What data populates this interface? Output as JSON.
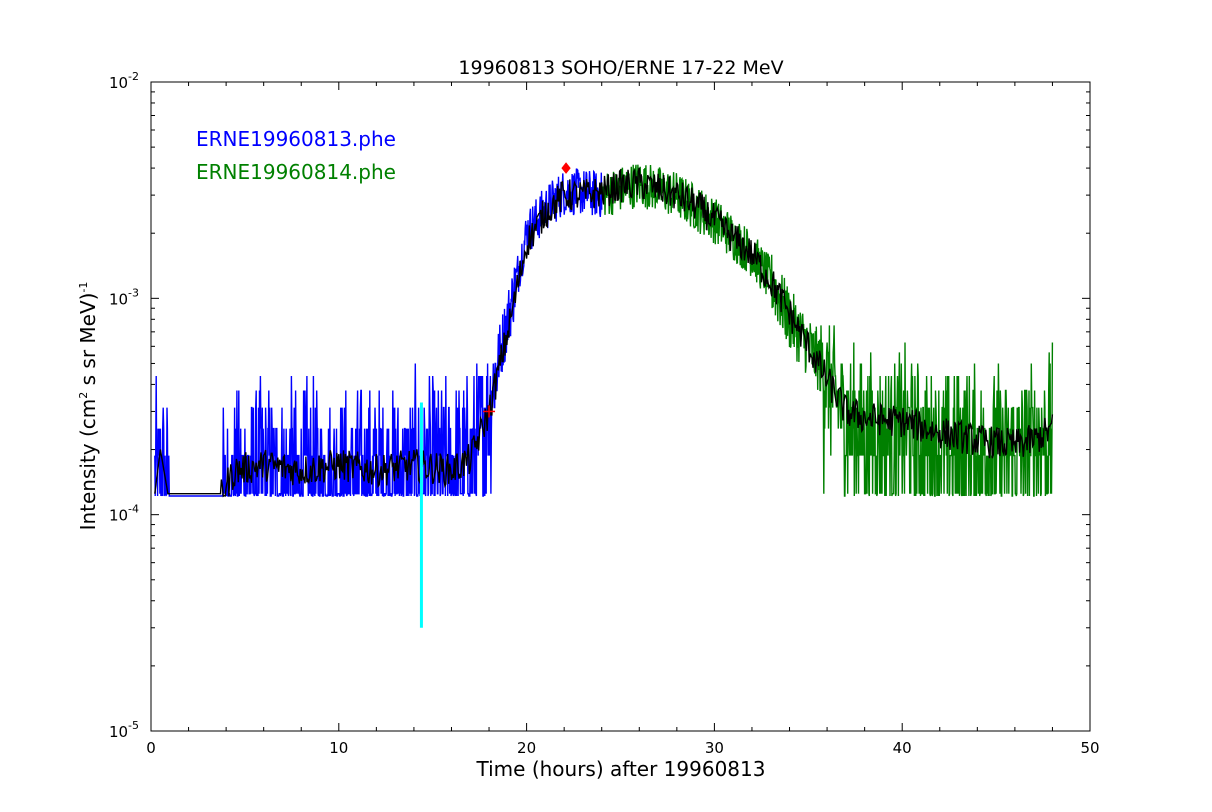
{
  "chart_data": {
    "type": "line",
    "title": "19960813 SOHO/ERNE 17-22 MeV",
    "xlabel": "Time (hours) after 19960813",
    "ylabel_prefix": "Intensity (cm",
    "ylabel_sup1": "2",
    "ylabel_mid": "  s sr MeV)",
    "ylabel_sup2": "-1",
    "xlim": [
      0,
      50
    ],
    "ylim": [
      1e-05,
      0.01
    ],
    "yscale": "log",
    "x_ticks": [
      "0",
      "10",
      "20",
      "30",
      "40",
      "50"
    ],
    "y_ticks": [
      {
        "base": "10",
        "exp": "-5"
      },
      {
        "base": "10",
        "exp": "-4"
      },
      {
        "base": "10",
        "exp": "-3"
      },
      {
        "base": "10",
        "exp": "-2"
      }
    ],
    "legend": [
      {
        "name": "ERNE19960813.phe",
        "color": "#0000ff"
      },
      {
        "name": "ERNE19960814.phe",
        "color": "#008000"
      }
    ],
    "legend_placement": "top-left",
    "grid": false,
    "series": [
      {
        "name": "ERNE19960813.phe",
        "color": "#0000ff",
        "x_range": [
          0.2,
          24.0
        ],
        "profile": [
          [
            0.2,
            0.00013
          ],
          [
            0.6,
            0.00018
          ],
          [
            1.0,
            0.000125
          ],
          [
            3.7,
            0.000125
          ],
          [
            5.0,
            0.00017
          ],
          [
            10.0,
            0.00016
          ],
          [
            15.0,
            0.00017
          ],
          [
            17.0,
            0.00019
          ],
          [
            18.0,
            0.00035
          ],
          [
            19.0,
            0.0008
          ],
          [
            20.0,
            0.002
          ],
          [
            21.0,
            0.0026
          ],
          [
            22.0,
            0.0031
          ],
          [
            23.0,
            0.0031
          ],
          [
            24.0,
            0.003
          ]
        ],
        "noise_floor": 0.000122,
        "noise_quantum": 6.25e-05
      },
      {
        "name": "ERNE19960814.phe",
        "color": "#008000",
        "x_range": [
          24.0,
          48.0
        ],
        "profile": [
          [
            24.0,
            0.003
          ],
          [
            26.0,
            0.0034
          ],
          [
            28.0,
            0.003
          ],
          [
            30.0,
            0.0023
          ],
          [
            32.0,
            0.0016
          ],
          [
            33.0,
            0.0012
          ],
          [
            34.0,
            0.0008
          ],
          [
            35.0,
            0.0006
          ],
          [
            36.0,
            0.00045
          ],
          [
            37.0,
            0.0003
          ],
          [
            38.0,
            0.00026
          ],
          [
            40.0,
            0.00025
          ],
          [
            42.0,
            0.00022
          ],
          [
            44.0,
            0.00022
          ],
          [
            46.0,
            0.00021
          ],
          [
            47.0,
            0.00023
          ],
          [
            48.0,
            0.00025
          ]
        ],
        "noise_floor": 0.000122,
        "noise_quantum": 6.25e-05
      }
    ],
    "smoothed": {
      "color": "#000000",
      "profile": [
        [
          0.2,
          0.000125
        ],
        [
          0.5,
          0.0002
        ],
        [
          0.9,
          0.000125
        ],
        [
          3.7,
          0.000125
        ],
        [
          4.5,
          0.00016
        ],
        [
          6.0,
          0.00017
        ],
        [
          8.0,
          0.00016
        ],
        [
          10.0,
          0.00017
        ],
        [
          12.0,
          0.00016
        ],
        [
          14.0,
          0.00017
        ],
        [
          16.0,
          0.00016
        ],
        [
          17.0,
          0.00018
        ],
        [
          18.0,
          0.0003
        ],
        [
          19.0,
          0.0007
        ],
        [
          20.0,
          0.0018
        ],
        [
          21.0,
          0.0025
        ],
        [
          22.0,
          0.003
        ],
        [
          23.0,
          0.003
        ],
        [
          24.0,
          0.0031
        ],
        [
          25.0,
          0.0033
        ],
        [
          26.0,
          0.0034
        ],
        [
          27.0,
          0.0032
        ],
        [
          28.0,
          0.003
        ],
        [
          29.0,
          0.0027
        ],
        [
          30.0,
          0.0023
        ],
        [
          31.0,
          0.0019
        ],
        [
          32.0,
          0.0016
        ],
        [
          33.0,
          0.0012
        ],
        [
          34.0,
          0.00085
        ],
        [
          35.0,
          0.0006
        ],
        [
          36.0,
          0.00042
        ],
        [
          37.0,
          0.0003
        ],
        [
          38.0,
          0.00028
        ],
        [
          40.0,
          0.00027
        ],
        [
          42.0,
          0.00024
        ],
        [
          44.0,
          0.00022
        ],
        [
          46.0,
          0.00021
        ],
        [
          47.0,
          0.00022
        ],
        [
          48.0,
          0.00025
        ]
      ]
    },
    "onset_line": {
      "color": "#00ffff",
      "x": 14.4,
      "y": [
        3e-05,
        0.00033
      ]
    },
    "markers": [
      {
        "type": "cross",
        "color": "#ff0000",
        "x": 18.0,
        "y": 0.0003
      },
      {
        "type": "diamond",
        "color": "#ff0000",
        "x": 22.1,
        "y": 0.004
      }
    ]
  }
}
